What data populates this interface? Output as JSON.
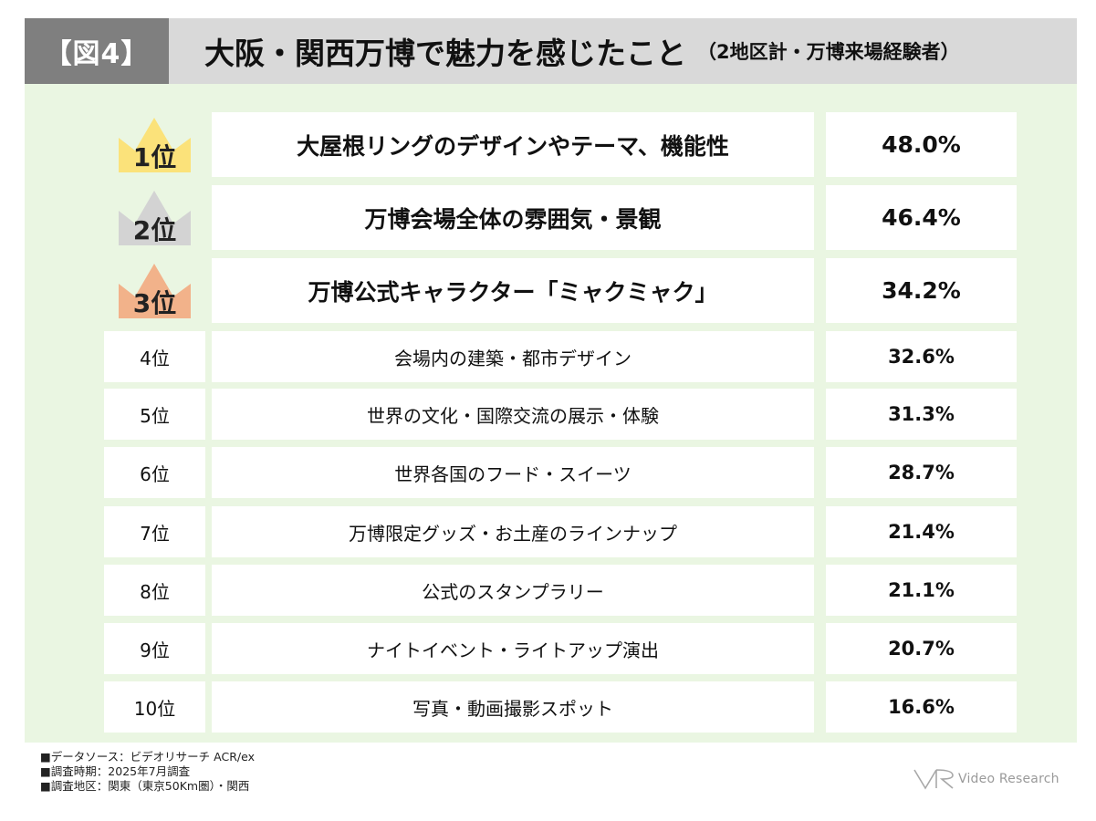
{
  "header": {
    "figure_label": "【図4】",
    "title": "大阪・関西万博で魅力を感じたこと",
    "subtitle": "（2地区計・万博来場経験者）"
  },
  "chart_data": {
    "type": "table",
    "title": "大阪・関西万博で魅力を感じたこと",
    "subtitle": "（2地区計・万博来場経験者）",
    "rows": [
      {
        "rank": "1位",
        "label": "大屋根リングのデザインやテーマ、機能性",
        "value": 48.0,
        "display": "48.0%"
      },
      {
        "rank": "2位",
        "label": "万博会場全体の雰囲気・景観",
        "value": 46.4,
        "display": "46.4%"
      },
      {
        "rank": "3位",
        "label": "万博公式キャラクター「ミャクミャク」",
        "value": 34.2,
        "display": "34.2%"
      },
      {
        "rank": "4位",
        "label": "会場内の建築・都市デザイン",
        "value": 32.6,
        "display": "32.6%"
      },
      {
        "rank": "5位",
        "label": "世界の文化・国際交流の展示・体験",
        "value": 31.3,
        "display": "31.3%"
      },
      {
        "rank": "6位",
        "label": "世界各国のフード・スイーツ",
        "value": 28.7,
        "display": "28.7%"
      },
      {
        "rank": "7位",
        "label": "万博限定グッズ・お土産のラインナップ",
        "value": 21.4,
        "display": "21.4%"
      },
      {
        "rank": "8位",
        "label": "公式のスタンプラリー",
        "value": 21.1,
        "display": "21.1%"
      },
      {
        "rank": "9位",
        "label": "ナイトイベント・ライトアップ演出",
        "value": 20.7,
        "display": "20.7%"
      },
      {
        "rank": "10位",
        "label": "写真・動画撮影スポット",
        "value": 16.6,
        "display": "16.6%"
      }
    ]
  },
  "crowns": {
    "gold": "#fbe27a",
    "silver": "#d3d3d3",
    "bronze": "#f2b28a"
  },
  "footer": {
    "lines": [
      "■データソース：ビデオリサーチ ACR/ex",
      "■調査時期：2025年7月調査",
      "■調査地区：関東（東京50Km圏）・関西"
    ]
  },
  "logo": {
    "text": "Video Research",
    "icon": "vr-logo-icon"
  },
  "colors": {
    "panel_bg": "#eaf6e2",
    "header_bg": "#d9d9d9",
    "badge_bg": "#7f7f7f"
  }
}
